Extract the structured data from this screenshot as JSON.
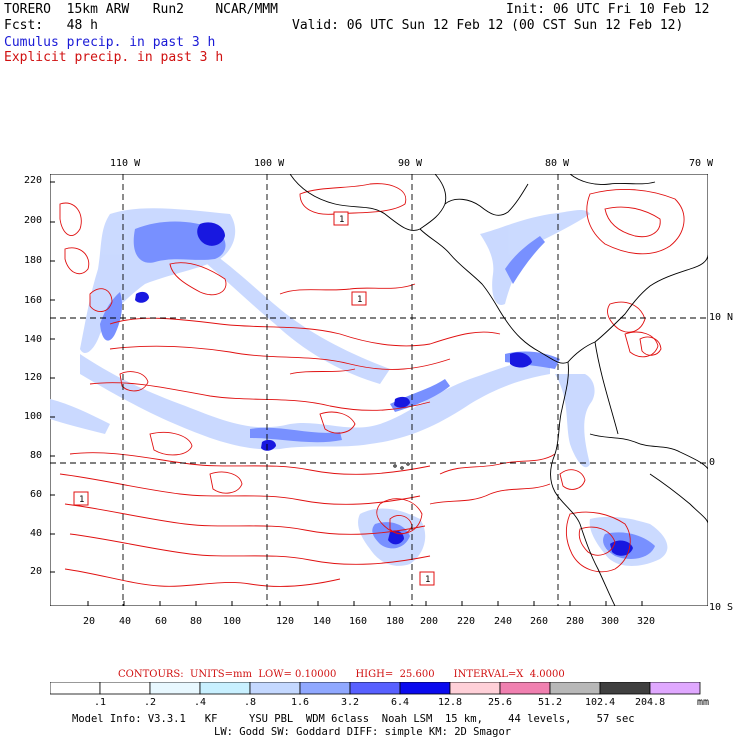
{
  "header": {
    "line1_left": "TORERO  15km ARW   Run2    NCAR/MMM",
    "line1_right": "Init: 06 UTC Fri 10 Feb 12",
    "line2_left": "Fcst:   48 h",
    "line2_right": "Valid: 06 UTC Sun 12 Feb 12 (00 CST Sun 12 Feb 12)",
    "line3": "Cumulus precip. in past 3 h",
    "line4": "Explicit precip. in past 3 h"
  },
  "map": {
    "top_lon_labels": [
      "110 W",
      "100 W",
      "90 W",
      "80 W",
      "70 W"
    ],
    "right_lat_labels": [
      "10 N",
      "0",
      "10 S"
    ],
    "left_y_ticks": [
      "220",
      "200",
      "180",
      "160",
      "140",
      "120",
      "100",
      "80",
      "60",
      "40",
      "20"
    ],
    "bottom_x_ticks": [
      "20",
      "40",
      "60",
      "80",
      "100",
      "120",
      "140",
      "160",
      "180",
      "200",
      "220",
      "240",
      "260",
      "280",
      "300",
      "320"
    ],
    "low_markers": [
      "1",
      "1",
      "1",
      "1"
    ],
    "colors": {
      "coast": "#000000",
      "explicit_contour": "#e01010",
      "light_blue": "#c8d8ff",
      "mid_blue": "#8098ff",
      "dark_blue": "#2020e0"
    }
  },
  "footer": {
    "contours_label": "CONTOURS:  UNITS=mm  LOW= 0.10000      HIGH=  25.600      INTERVAL=X  4.0000",
    "colorbar_labels": [
      ".1",
      ".2",
      ".4",
      ".8",
      "1.6",
      "3.2",
      "6.4",
      "12.8",
      "25.6",
      "51.2",
      "102.4",
      "204.8"
    ],
    "colorbar_unit": "mm",
    "colorbar_colors": [
      "#ffffff",
      "#ffffff",
      "#e8f8ff",
      "#c8f0ff",
      "#c4d8ff",
      "#90a8ff",
      "#5860ff",
      "#0a0aee",
      "#ffd0d8",
      "#f080b0",
      "#b8b8b8",
      "#404040",
      "#e0a8ff"
    ],
    "model_info_line1": "Model Info: V3.3.1   KF     YSU PBL  WDM 6class  Noah LSM  15 km,    44 levels,    57 sec",
    "model_info_line2": "LW: Godd SW: Goddard DIFF: simple KM: 2D Smagor"
  }
}
